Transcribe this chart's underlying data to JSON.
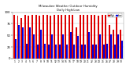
{
  "title": "Milwaukee Weather Outdoor Humidity",
  "subtitle": "Daily High/Low",
  "high_color": "#dd0000",
  "low_color": "#0000dd",
  "legend_high": "High",
  "legend_low": "Low",
  "background_color": "#ffffff",
  "grid_color": "#aaaaaa",
  "ylim": [
    0,
    100
  ],
  "dates": [
    "1",
    "2",
    "3",
    "4",
    "5",
    "6",
    "7",
    "8",
    "9",
    "10",
    "11",
    "12",
    "13",
    "14",
    "15",
    "16",
    "17",
    "18",
    "19",
    "20",
    "21",
    "22",
    "23",
    "24",
    "25",
    "26",
    "27",
    "28",
    "29",
    "30"
  ],
  "highs": [
    95,
    92,
    88,
    95,
    92,
    95,
    95,
    92,
    95,
    95,
    92,
    95,
    95,
    95,
    95,
    95,
    95,
    68,
    95,
    95,
    95,
    95,
    95,
    92,
    95,
    95,
    72,
    62,
    95,
    62
  ],
  "lows": [
    42,
    72,
    68,
    32,
    68,
    52,
    30,
    62,
    32,
    30,
    52,
    30,
    30,
    52,
    30,
    58,
    30,
    48,
    30,
    30,
    58,
    30,
    30,
    52,
    30,
    32,
    52,
    30,
    52,
    38
  ]
}
